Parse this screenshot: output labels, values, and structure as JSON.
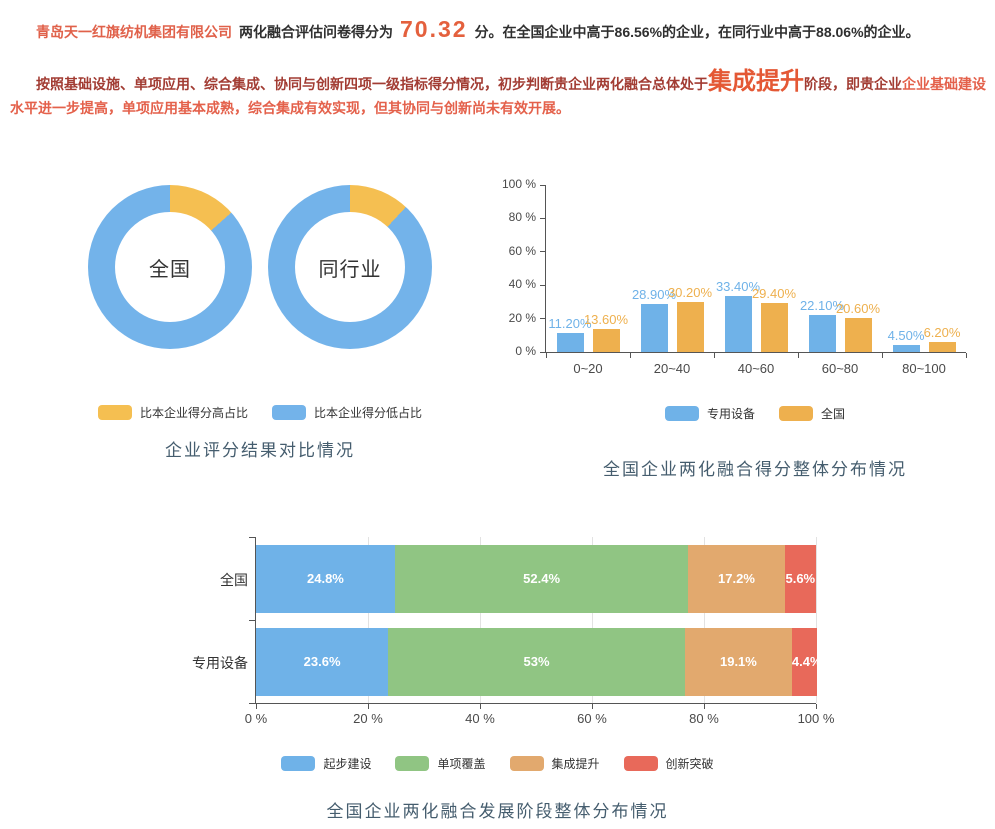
{
  "intro": {
    "company": "青岛天一红旗纺机集团有限公司",
    "lead": "两化融合评估问卷得分为",
    "score": "70.32",
    "tail": "分。在全国企业中高于86.56%的企业，在同行业中高于88.06%的企业。"
  },
  "assessment": {
    "part1": "按照基础设施、单项应用、综合集成、协同与创新四项一级指标得分情况，初步判断贵企业两化融合总体处于",
    "stage": "集成提升",
    "part2": "阶段，即贵企业",
    "part3": "企业基础建设水平进一步提高，单项应用基本成熟，综合集成有效实现，但其协同与创新尚未有效开展。"
  },
  "colors": {
    "company_name": "#e0614a",
    "score_number": "#e4603d",
    "stage_highlight": "#e45835",
    "assessment_dark_red": "#a23c33",
    "assessment_light_red": "#e4614b",
    "chart_title": "#455d6e",
    "series_blue": "#6fb2e8",
    "series_yellow": "#f5bf51",
    "series_orange_bar": "#eeb04e",
    "series_green": "#90c583",
    "series_tan": "#e2a96e",
    "series_red": "#e8695a"
  },
  "chart_data": [
    {
      "type": "pie",
      "title": "企业评分结果对比情况",
      "higher_color": "#f5bf51",
      "lower_color": "#73b3ea",
      "legend": [
        {
          "label": "比本企业得分高占比",
          "color": "#f5bf51"
        },
        {
          "label": "比本企业得分低占比",
          "color": "#73b3ea"
        }
      ],
      "donuts": [
        {
          "label": "全国",
          "higher_pct": 13.44,
          "lower_pct": 86.56
        },
        {
          "label": "同行业",
          "higher_pct": 11.94,
          "lower_pct": 88.06
        }
      ]
    },
    {
      "type": "bar",
      "title": "全国企业两化融合得分整体分布情况",
      "categories": [
        "0~20",
        "20~40",
        "40~60",
        "60~80",
        "80~100"
      ],
      "y_ticks": [
        "0 %",
        "20 %",
        "40 %",
        "60 %",
        "80 %",
        "100 %"
      ],
      "ylim": [
        0,
        100
      ],
      "series": [
        {
          "name": "专用设备",
          "color": "#6fb2e8",
          "values": [
            11.2,
            28.9,
            33.4,
            22.1,
            4.5
          ],
          "labels": [
            "11.20%",
            "28.90%",
            "33.40%",
            "22.10%",
            "4.50%"
          ]
        },
        {
          "name": "全国",
          "color": "#eeb04e",
          "values": [
            13.6,
            30.2,
            29.4,
            20.6,
            6.2
          ],
          "labels": [
            "13.60%",
            "30.20%",
            "29.40%",
            "20.60%",
            "6.20%"
          ]
        }
      ]
    },
    {
      "type": "bar-stacked-horizontal",
      "title": "全国企业两化融合发展阶段整体分布情况",
      "categories": [
        "全国",
        "专用设备"
      ],
      "x_ticks": [
        "0 %",
        "20 %",
        "40 %",
        "60 %",
        "80 %",
        "100 %"
      ],
      "xlim": [
        0,
        100
      ],
      "series": [
        {
          "name": "起步建设",
          "color": "#6fb2e8",
          "values": [
            24.8,
            23.6
          ],
          "labels": [
            "24.8%",
            "23.6%"
          ]
        },
        {
          "name": "单项覆盖",
          "color": "#90c583",
          "values": [
            52.4,
            53
          ],
          "labels": [
            "52.4%",
            "53%"
          ]
        },
        {
          "name": "集成提升",
          "color": "#e2a96e",
          "values": [
            17.2,
            19.1
          ],
          "labels": [
            "17.2%",
            "19.1%"
          ]
        },
        {
          "name": "创新突破",
          "color": "#e8695a",
          "values": [
            5.6,
            4.4
          ],
          "labels": [
            "5.6%",
            "4.4%"
          ]
        }
      ]
    }
  ]
}
